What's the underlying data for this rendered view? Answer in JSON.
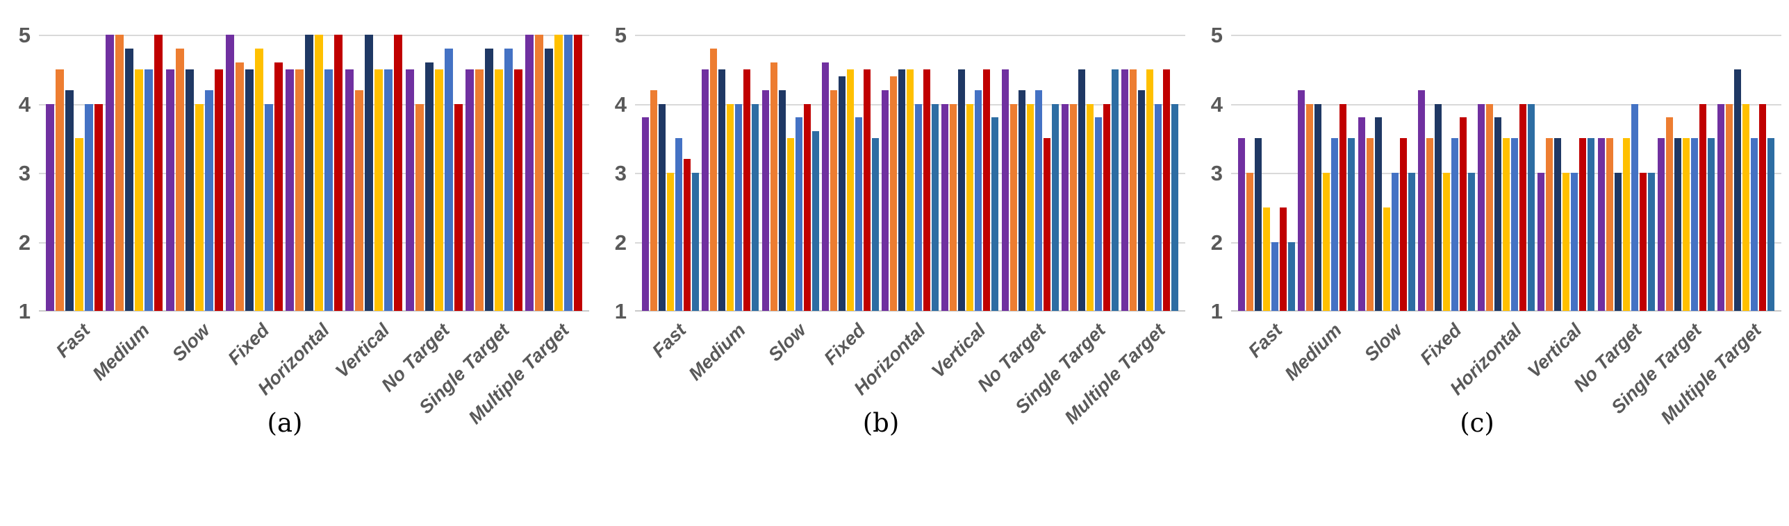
{
  "figure": {
    "background": "#ffffff",
    "grid_color": "#d9d9d9",
    "axis_text_color": "#595959"
  },
  "chart_data": [
    {
      "id": "a",
      "type": "bar",
      "caption": "(a)",
      "ylim": [
        1,
        5
      ],
      "y_ticks": [
        "5",
        "4",
        "3",
        "2",
        "1"
      ],
      "grid": true,
      "legend": "none",
      "categories": [
        "Fast",
        "Medium",
        "Slow",
        "Fixed",
        "Horizontal",
        "Vertical",
        "No Target",
        "Single Target",
        "Multiple Target"
      ],
      "series": [
        {
          "name": "purple",
          "color": "#7030A0",
          "values": [
            4.0,
            5.0,
            4.5,
            5.0,
            4.5,
            4.5,
            4.5,
            4.5,
            5.0
          ]
        },
        {
          "name": "orange",
          "color": "#ED7D31",
          "values": [
            4.5,
            5.0,
            4.8,
            4.6,
            4.5,
            4.2,
            4.0,
            4.5,
            5.0
          ]
        },
        {
          "name": "navy",
          "color": "#1F3864",
          "values": [
            4.2,
            4.8,
            4.5,
            4.5,
            5.0,
            5.0,
            4.6,
            4.8,
            4.8
          ]
        },
        {
          "name": "gold",
          "color": "#FFC000",
          "values": [
            3.5,
            4.5,
            4.0,
            4.8,
            5.0,
            4.5,
            4.5,
            4.5,
            5.0
          ]
        },
        {
          "name": "blue",
          "color": "#4472C4",
          "values": [
            4.0,
            4.5,
            4.2,
            4.0,
            4.5,
            4.5,
            4.8,
            4.8,
            5.0
          ]
        },
        {
          "name": "red",
          "color": "#C00000",
          "values": [
            4.0,
            5.0,
            4.5,
            4.6,
            5.0,
            5.0,
            4.0,
            4.5,
            5.0
          ]
        }
      ]
    },
    {
      "id": "b",
      "type": "bar",
      "caption": "(b)",
      "ylim": [
        1,
        5
      ],
      "y_ticks": [
        "5",
        "4",
        "3",
        "2",
        "1"
      ],
      "grid": true,
      "legend": "none",
      "categories": [
        "Fast",
        "Medium",
        "Slow",
        "Fixed",
        "Horizontal",
        "Vertical",
        "No Target",
        "Single Target",
        "Multiple Target"
      ],
      "series": [
        {
          "name": "purple",
          "color": "#7030A0",
          "values": [
            3.8,
            4.5,
            4.2,
            4.6,
            4.2,
            4.0,
            4.5,
            4.0,
            4.5
          ]
        },
        {
          "name": "orange",
          "color": "#ED7D31",
          "values": [
            4.2,
            4.8,
            4.6,
            4.2,
            4.4,
            4.0,
            4.0,
            4.0,
            4.5
          ]
        },
        {
          "name": "navy",
          "color": "#1F3864",
          "values": [
            4.0,
            4.5,
            4.2,
            4.4,
            4.5,
            4.5,
            4.2,
            4.5,
            4.2
          ]
        },
        {
          "name": "gold",
          "color": "#FFC000",
          "values": [
            3.0,
            4.0,
            3.5,
            4.5,
            4.5,
            4.0,
            4.0,
            4.0,
            4.5
          ]
        },
        {
          "name": "blue",
          "color": "#4472C4",
          "values": [
            3.5,
            4.0,
            3.8,
            3.8,
            4.0,
            4.2,
            4.2,
            3.8,
            4.0
          ]
        },
        {
          "name": "red",
          "color": "#C00000",
          "values": [
            3.2,
            4.5,
            4.0,
            4.5,
            4.5,
            4.5,
            3.5,
            4.0,
            4.5
          ]
        },
        {
          "name": "steel-blue",
          "color": "#2D6DA3",
          "values": [
            3.0,
            4.0,
            3.6,
            3.5,
            4.0,
            3.8,
            4.0,
            4.5,
            4.0
          ]
        }
      ]
    },
    {
      "id": "c",
      "type": "bar",
      "caption": "(c)",
      "ylim": [
        1,
        5
      ],
      "y_ticks": [
        "5",
        "4",
        "3",
        "2",
        "1"
      ],
      "grid": true,
      "legend": "none",
      "categories": [
        "Fast",
        "Medium",
        "Slow",
        "Fixed",
        "Horizontal",
        "Vertical",
        "No Target",
        "Single Target",
        "Multiple Target"
      ],
      "series": [
        {
          "name": "purple",
          "color": "#7030A0",
          "values": [
            3.5,
            4.2,
            3.8,
            4.2,
            4.0,
            3.0,
            3.5,
            3.5,
            4.0
          ]
        },
        {
          "name": "orange",
          "color": "#ED7D31",
          "values": [
            3.0,
            4.0,
            3.5,
            3.5,
            4.0,
            3.5,
            3.5,
            3.8,
            4.0
          ]
        },
        {
          "name": "navy",
          "color": "#1F3864",
          "values": [
            3.5,
            4.0,
            3.8,
            4.0,
            3.8,
            3.5,
            3.0,
            3.5,
            4.5
          ]
        },
        {
          "name": "gold",
          "color": "#FFC000",
          "values": [
            2.5,
            3.0,
            2.5,
            3.0,
            3.5,
            3.0,
            3.5,
            3.5,
            4.0
          ]
        },
        {
          "name": "blue",
          "color": "#4472C4",
          "values": [
            2.0,
            3.5,
            3.0,
            3.5,
            3.5,
            3.0,
            4.0,
            3.5,
            3.5
          ]
        },
        {
          "name": "red",
          "color": "#C00000",
          "values": [
            2.5,
            4.0,
            3.5,
            3.8,
            4.0,
            3.5,
            3.0,
            4.0,
            4.0
          ]
        },
        {
          "name": "steel-blue",
          "color": "#2D6DA3",
          "values": [
            2.0,
            3.5,
            3.0,
            3.0,
            4.0,
            3.5,
            3.0,
            3.5,
            3.5
          ]
        }
      ]
    }
  ]
}
